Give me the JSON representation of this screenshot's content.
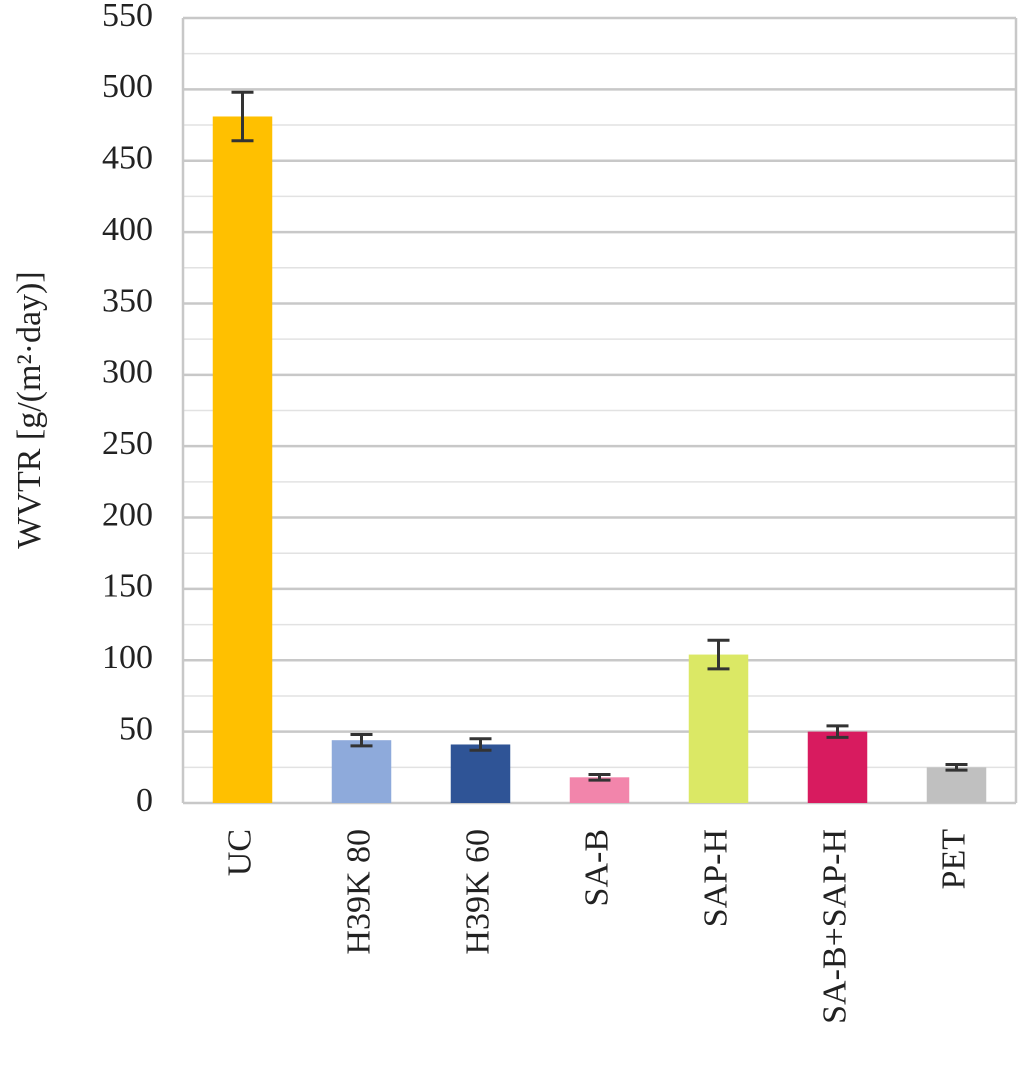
{
  "chart_data": {
    "type": "bar",
    "y_label": "WVTR [g/(m²·day)]",
    "categories": [
      "UC",
      "H39K 80",
      "H39K 60",
      "SA-B",
      "SAP-H",
      "SA-B+SAP-H",
      "PET"
    ],
    "values": [
      481,
      44,
      41,
      18,
      104,
      50,
      25
    ],
    "errors": [
      17,
      4,
      4,
      2,
      10,
      4,
      2
    ],
    "colors": [
      "#ffc000",
      "#8eaadb",
      "#2f5496",
      "#f285ab",
      "#dbe865",
      "#d81b5f",
      "#c0c0c0"
    ],
    "ylim": [
      0,
      550
    ],
    "yticks": [
      0,
      50,
      100,
      150,
      200,
      250,
      300,
      350,
      400,
      450,
      500,
      550
    ],
    "minor_yticks": [
      25,
      75,
      125,
      175,
      225,
      275,
      325,
      375,
      425,
      475,
      525
    ],
    "grid": true
  }
}
